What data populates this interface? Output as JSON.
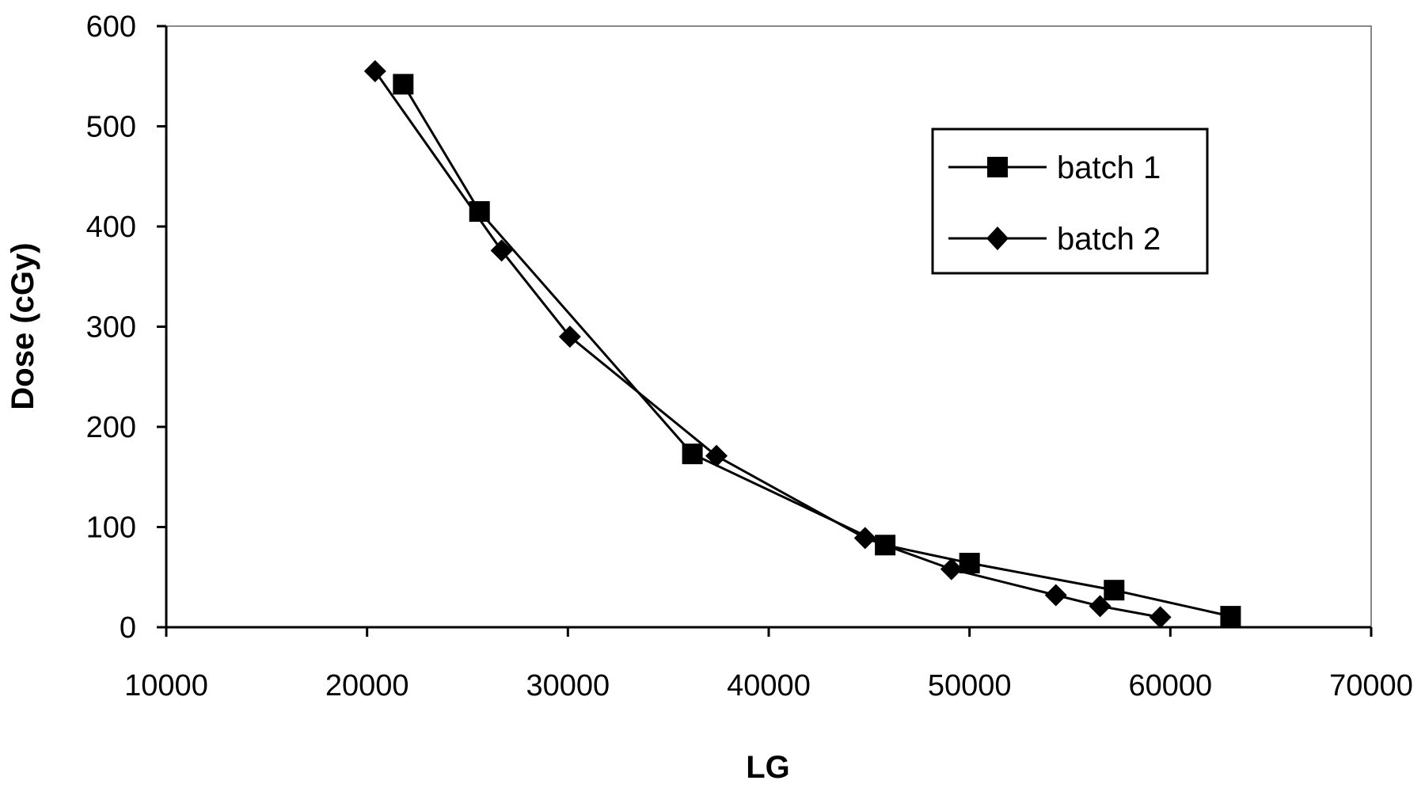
{
  "chart_data": {
    "type": "line",
    "title": "",
    "xlabel": "LG",
    "ylabel": "Dose (cGy)",
    "xlim": [
      10000,
      70000
    ],
    "ylim": [
      0,
      600
    ],
    "xticks": [
      "10000",
      "20000",
      "30000",
      "40000",
      "50000",
      "60000",
      "70000"
    ],
    "yticks": [
      "0",
      "100",
      "200",
      "300",
      "400",
      "500",
      "600"
    ],
    "grid": false,
    "legend_position": "top-right",
    "series": [
      {
        "name": "batch 1",
        "marker": "square",
        "x": [
          21800,
          25600,
          36200,
          45800,
          50000,
          57200,
          63000
        ],
        "y": [
          542,
          415,
          173,
          82,
          64,
          37,
          11
        ]
      },
      {
        "name": "batch 2",
        "marker": "diamond",
        "x": [
          20400,
          26700,
          30100,
          37400,
          44800,
          49100,
          54300,
          56500,
          59500
        ],
        "y": [
          555,
          376,
          290,
          171,
          89,
          58,
          32,
          21,
          10
        ]
      }
    ]
  }
}
